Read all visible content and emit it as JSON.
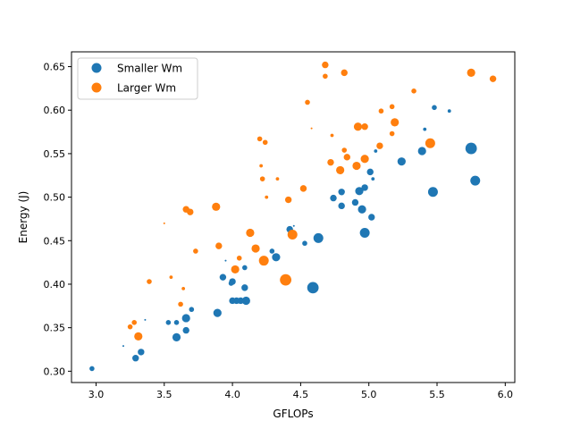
{
  "chart_data": {
    "type": "scatter",
    "title": "",
    "xlabel": "GFLOPs",
    "ylabel": "Energy (J)",
    "xlim": [
      2.82,
      6.07
    ],
    "ylim": [
      0.287,
      0.667
    ],
    "xticks": [
      3.0,
      3.5,
      4.0,
      4.5,
      5.0,
      5.5,
      6.0
    ],
    "yticks": [
      0.3,
      0.35,
      0.4,
      0.45,
      0.5,
      0.55,
      0.6,
      0.65
    ],
    "xtick_labels": [
      "3.0",
      "3.5",
      "4.0",
      "4.5",
      "5.0",
      "5.5",
      "6.0"
    ],
    "ytick_labels": [
      "0.30",
      "0.35",
      "0.40",
      "0.45",
      "0.50",
      "0.55",
      "0.60",
      "0.65"
    ],
    "grid": false,
    "legend_position": "upper-left",
    "series": [
      {
        "name": "Smaller Wm",
        "color": "#1f77b4",
        "points": [
          [
            2.97,
            0.303,
            3
          ],
          [
            3.2,
            0.329,
            1
          ],
          [
            3.29,
            0.315,
            4
          ],
          [
            3.33,
            0.322,
            4
          ],
          [
            3.36,
            0.359,
            1
          ],
          [
            3.53,
            0.356,
            3
          ],
          [
            3.59,
            0.356,
            3
          ],
          [
            3.59,
            0.339,
            5
          ],
          [
            3.66,
            0.361,
            5
          ],
          [
            3.66,
            0.347,
            4
          ],
          [
            3.7,
            0.371,
            3
          ],
          [
            3.89,
            0.367,
            5
          ],
          [
            3.93,
            0.408,
            4
          ],
          [
            3.95,
            0.427,
            1
          ],
          [
            3.99,
            0.401,
            3
          ],
          [
            4.0,
            0.403,
            4
          ],
          [
            4.0,
            0.381,
            4
          ],
          [
            4.03,
            0.381,
            4
          ],
          [
            4.06,
            0.381,
            4
          ],
          [
            4.09,
            0.419,
            3
          ],
          [
            4.09,
            0.396,
            4
          ],
          [
            4.1,
            0.381,
            5
          ],
          [
            4.29,
            0.438,
            3
          ],
          [
            4.32,
            0.431,
            5
          ],
          [
            4.42,
            0.463,
            4
          ],
          [
            4.45,
            0.467,
            1
          ],
          [
            4.53,
            0.447,
            3
          ],
          [
            4.59,
            0.396,
            7
          ],
          [
            4.63,
            0.453,
            6
          ],
          [
            4.74,
            0.499,
            4
          ],
          [
            4.8,
            0.49,
            4
          ],
          [
            4.8,
            0.506,
            4
          ],
          [
            4.9,
            0.494,
            4
          ],
          [
            4.93,
            0.507,
            5
          ],
          [
            4.95,
            0.486,
            5
          ],
          [
            4.97,
            0.459,
            6
          ],
          [
            4.97,
            0.511,
            4
          ],
          [
            5.01,
            0.529,
            4
          ],
          [
            5.02,
            0.477,
            4
          ],
          [
            5.03,
            0.521,
            2
          ],
          [
            5.05,
            0.553,
            2
          ],
          [
            5.24,
            0.541,
            5
          ],
          [
            5.39,
            0.553,
            5
          ],
          [
            5.41,
            0.578,
            2
          ],
          [
            5.47,
            0.506,
            6
          ],
          [
            5.48,
            0.603,
            3
          ],
          [
            5.59,
            0.599,
            2
          ],
          [
            5.75,
            0.556,
            7
          ],
          [
            5.78,
            0.519,
            6
          ]
        ]
      },
      {
        "name": "Larger Wm",
        "color": "#ff7f0e",
        "points": [
          [
            3.25,
            0.351,
            3
          ],
          [
            3.28,
            0.356,
            3
          ],
          [
            3.31,
            0.34,
            5
          ],
          [
            3.39,
            0.403,
            3
          ],
          [
            3.5,
            0.47,
            1
          ],
          [
            3.55,
            0.408,
            2
          ],
          [
            3.62,
            0.377,
            3
          ],
          [
            3.64,
            0.395,
            2
          ],
          [
            3.66,
            0.486,
            4
          ],
          [
            3.69,
            0.483,
            4
          ],
          [
            3.73,
            0.438,
            3
          ],
          [
            3.88,
            0.489,
            5
          ],
          [
            3.9,
            0.444,
            4
          ],
          [
            4.02,
            0.417,
            5
          ],
          [
            4.05,
            0.43,
            3
          ],
          [
            4.13,
            0.459,
            5
          ],
          [
            4.17,
            0.441,
            5
          ],
          [
            4.2,
            0.567,
            3
          ],
          [
            4.21,
            0.536,
            2
          ],
          [
            4.22,
            0.521,
            3
          ],
          [
            4.23,
            0.427,
            6
          ],
          [
            4.24,
            0.563,
            3
          ],
          [
            4.25,
            0.5,
            2
          ],
          [
            4.33,
            0.521,
            2
          ],
          [
            4.39,
            0.405,
            7
          ],
          [
            4.41,
            0.497,
            4
          ],
          [
            4.44,
            0.457,
            6
          ],
          [
            4.52,
            0.51,
            4
          ],
          [
            4.55,
            0.609,
            3
          ],
          [
            4.58,
            0.579,
            1
          ],
          [
            4.68,
            0.652,
            4
          ],
          [
            4.68,
            0.639,
            3
          ],
          [
            4.72,
            0.54,
            4
          ],
          [
            4.73,
            0.571,
            2
          ],
          [
            4.79,
            0.531,
            5
          ],
          [
            4.82,
            0.554,
            3
          ],
          [
            4.82,
            0.643,
            4
          ],
          [
            4.84,
            0.546,
            4
          ],
          [
            4.91,
            0.536,
            5
          ],
          [
            4.92,
            0.581,
            5
          ],
          [
            4.97,
            0.581,
            4
          ],
          [
            4.97,
            0.544,
            5
          ],
          [
            5.08,
            0.559,
            4
          ],
          [
            5.09,
            0.599,
            3
          ],
          [
            5.17,
            0.573,
            3
          ],
          [
            5.17,
            0.604,
            3
          ],
          [
            5.19,
            0.586,
            5
          ],
          [
            5.33,
            0.622,
            3
          ],
          [
            5.45,
            0.562,
            6
          ],
          [
            5.75,
            0.643,
            5
          ],
          [
            5.91,
            0.636,
            4
          ]
        ]
      }
    ]
  }
}
